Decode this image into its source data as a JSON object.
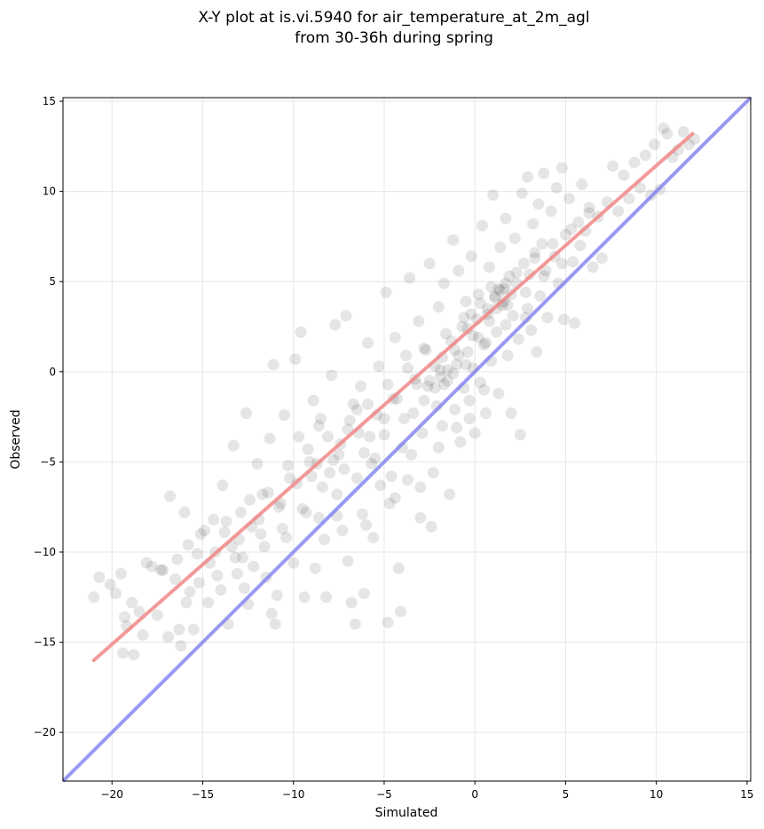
{
  "chart_data": {
    "type": "scatter",
    "title": "X-Y plot at is.vi.5940 for air_temperature_at_2m_agl",
    "subtitle": "from 30-36h during spring",
    "xlabel": "Simulated",
    "ylabel": "Observed",
    "xlim": [
      -22.7,
      15.2
    ],
    "ylim": [
      -22.7,
      15.2
    ],
    "xticks": [
      -20,
      -15,
      -10,
      -5,
      0,
      5,
      10,
      15
    ],
    "yticks": [
      -20,
      -15,
      -10,
      -5,
      0,
      5,
      10,
      15
    ],
    "xtick_labels": [
      "−20",
      "−15",
      "−10",
      "−5",
      "0",
      "5",
      "10",
      "15"
    ],
    "ytick_labels": [
      "−20",
      "−15",
      "−10",
      "−5",
      "0",
      "5",
      "10",
      "15"
    ],
    "grid": true,
    "colors": {
      "points": "#000000",
      "fit_line": "#f08080",
      "identity_line": "#8080f0",
      "grid": "#e6e6e6"
    },
    "identity_line": {
      "x": [
        -22.7,
        15.2
      ],
      "y": [
        -22.7,
        15.2
      ]
    },
    "fit_line": {
      "x": [
        -21,
        12
      ],
      "y": [
        -16.0,
        13.2
      ]
    },
    "points": [
      [
        -21.0,
        -12.5
      ],
      [
        -20.7,
        -11.4
      ],
      [
        -20.1,
        -11.8
      ],
      [
        -19.8,
        -12.3
      ],
      [
        -19.5,
        -11.2
      ],
      [
        -19.3,
        -13.6
      ],
      [
        -19.4,
        -15.6
      ],
      [
        -19.2,
        -14.1
      ],
      [
        -18.9,
        -12.8
      ],
      [
        -18.8,
        -15.7
      ],
      [
        -18.5,
        -13.3
      ],
      [
        -18.3,
        -14.6
      ],
      [
        -18.1,
        -10.6
      ],
      [
        -17.8,
        -10.8
      ],
      [
        -17.5,
        -13.5
      ],
      [
        -17.3,
        -11.0
      ],
      [
        -16.9,
        -14.7
      ],
      [
        -16.8,
        -6.9
      ],
      [
        -16.5,
        -11.5
      ],
      [
        -16.3,
        -14.3
      ],
      [
        -16.2,
        -15.2
      ],
      [
        -16.0,
        -7.8
      ],
      [
        -15.8,
        -9.6
      ],
      [
        -15.7,
        -12.2
      ],
      [
        -15.5,
        -14.3
      ],
      [
        -15.3,
        -10.1
      ],
      [
        -15.2,
        -11.7
      ],
      [
        -14.9,
        -8.8
      ],
      [
        -14.7,
        -12.8
      ],
      [
        -14.6,
        -10.6
      ],
      [
        -14.4,
        -8.2
      ],
      [
        -14.2,
        -11.3
      ],
      [
        -14.0,
        -12.1
      ],
      [
        -13.9,
        -6.3
      ],
      [
        -13.8,
        -8.9
      ],
      [
        -13.6,
        -14.0
      ],
      [
        -13.4,
        -9.7
      ],
      [
        -13.3,
        -4.1
      ],
      [
        -13.1,
        -11.2
      ],
      [
        -12.9,
        -7.8
      ],
      [
        -12.8,
        -10.3
      ],
      [
        -12.6,
        -2.3
      ],
      [
        -12.5,
        -12.9
      ],
      [
        -12.3,
        -8.6
      ],
      [
        -12.2,
        -10.8
      ],
      [
        -12.0,
        -5.1
      ],
      [
        -11.8,
        -9.0
      ],
      [
        -11.7,
        -6.8
      ],
      [
        -11.5,
        -11.4
      ],
      [
        -11.3,
        -3.7
      ],
      [
        -11.2,
        -13.4
      ],
      [
        -11.1,
        0.4
      ],
      [
        -11.0,
        -14.0
      ],
      [
        -10.9,
        -12.4
      ],
      [
        -10.7,
        -7.3
      ],
      [
        -10.5,
        -2.4
      ],
      [
        -10.4,
        -9.2
      ],
      [
        -10.2,
        -5.9
      ],
      [
        -10.0,
        -10.6
      ],
      [
        -9.9,
        0.7
      ],
      [
        -9.7,
        -3.6
      ],
      [
        -9.6,
        2.2
      ],
      [
        -9.4,
        -12.5
      ],
      [
        -9.3,
        -7.8
      ],
      [
        -9.1,
        -5.0
      ],
      [
        -8.9,
        -1.6
      ],
      [
        -8.8,
        -10.9
      ],
      [
        -8.6,
        -8.1
      ],
      [
        -8.5,
        -2.6
      ],
      [
        -8.3,
        -9.3
      ],
      [
        -8.2,
        -12.5
      ],
      [
        -8.0,
        -5.6
      ],
      [
        -7.9,
        -0.2
      ],
      [
        -7.7,
        2.6
      ],
      [
        -7.6,
        -6.8
      ],
      [
        -7.4,
        -4.0
      ],
      [
        -7.3,
        -8.8
      ],
      [
        -7.1,
        3.1
      ],
      [
        -7.0,
        -10.5
      ],
      [
        -6.8,
        -12.8
      ],
      [
        -6.7,
        -1.8
      ],
      [
        -6.6,
        -14.0
      ],
      [
        -6.5,
        -5.9
      ],
      [
        -6.3,
        -0.8
      ],
      [
        -6.2,
        -7.9
      ],
      [
        -6.1,
        -12.3
      ],
      [
        -5.9,
        1.6
      ],
      [
        -5.8,
        -3.6
      ],
      [
        -5.6,
        -9.2
      ],
      [
        -5.5,
        -4.8
      ],
      [
        -5.3,
        0.3
      ],
      [
        -5.2,
        -6.3
      ],
      [
        -5.0,
        -2.6
      ],
      [
        -4.9,
        4.4
      ],
      [
        -4.8,
        -13.9
      ],
      [
        -4.7,
        -7.3
      ],
      [
        -4.5,
        -1.5
      ],
      [
        -4.4,
        1.9
      ],
      [
        -4.2,
        -10.9
      ],
      [
        -4.1,
        -13.3
      ],
      [
        -4.0,
        -4.2
      ],
      [
        -3.8,
        0.9
      ],
      [
        -3.7,
        -6.0
      ],
      [
        -3.6,
        5.2
      ],
      [
        -3.4,
        -2.3
      ],
      [
        -3.3,
        -0.4
      ],
      [
        -3.1,
        2.8
      ],
      [
        -3.0,
        -8.1
      ],
      [
        -2.9,
        -3.4
      ],
      [
        -2.7,
        1.2
      ],
      [
        -2.6,
        -0.8
      ],
      [
        -2.5,
        6.0
      ],
      [
        -2.4,
        -8.6
      ],
      [
        -2.3,
        -5.6
      ],
      [
        -2.1,
        -1.9
      ],
      [
        -2.0,
        3.6
      ],
      [
        -1.9,
        0.1
      ],
      [
        -1.8,
        -3.0
      ],
      [
        -1.7,
        4.9
      ],
      [
        -1.5,
        -0.5
      ],
      [
        -1.4,
        -6.8
      ],
      [
        -1.3,
        1.7
      ],
      [
        -1.2,
        7.3
      ],
      [
        -1.1,
        -2.1
      ],
      [
        -1.0,
        0.4
      ],
      [
        -0.9,
        5.6
      ],
      [
        -0.8,
        -3.9
      ],
      [
        -0.7,
        2.5
      ],
      [
        -0.6,
        -0.9
      ],
      [
        -0.5,
        3.9
      ],
      [
        -0.4,
        1.1
      ],
      [
        -0.3,
        -1.6
      ],
      [
        -0.2,
        6.4
      ],
      [
        -0.1,
        0.2
      ],
      [
        0.0,
        -3.4
      ],
      [
        0.1,
        2.9
      ],
      [
        0.2,
        4.3
      ],
      [
        0.3,
        -0.6
      ],
      [
        0.4,
        8.1
      ],
      [
        0.5,
        1.5
      ],
      [
        0.6,
        -2.3
      ],
      [
        0.7,
        3.5
      ],
      [
        0.8,
        5.8
      ],
      [
        0.9,
        0.6
      ],
      [
        1.0,
        9.8
      ],
      [
        1.1,
        4.1
      ],
      [
        1.2,
        2.2
      ],
      [
        1.3,
        -1.2
      ],
      [
        1.4,
        6.9
      ],
      [
        1.5,
        3.7
      ],
      [
        1.6,
        4.6
      ],
      [
        1.7,
        8.5
      ],
      [
        1.8,
        0.9
      ],
      [
        1.9,
        5.3
      ],
      [
        2.0,
        -2.3
      ],
      [
        2.1,
        3.1
      ],
      [
        2.2,
        7.4
      ],
      [
        2.3,
        4.9
      ],
      [
        2.4,
        1.8
      ],
      [
        2.5,
        -3.5
      ],
      [
        2.6,
        9.9
      ],
      [
        2.7,
        6.0
      ],
      [
        2.8,
        3.0
      ],
      [
        2.9,
        10.8
      ],
      [
        3.0,
        5.4
      ],
      [
        3.1,
        2.3
      ],
      [
        3.2,
        8.2
      ],
      [
        3.3,
        6.6
      ],
      [
        3.4,
        1.1
      ],
      [
        3.5,
        9.3
      ],
      [
        3.6,
        4.2
      ],
      [
        3.7,
        7.1
      ],
      [
        3.8,
        11.0
      ],
      [
        3.9,
        5.6
      ],
      [
        4.0,
        3.0
      ],
      [
        4.2,
        8.9
      ],
      [
        4.4,
        6.4
      ],
      [
        4.5,
        10.2
      ],
      [
        4.6,
        4.9
      ],
      [
        4.8,
        11.3
      ],
      [
        4.9,
        2.9
      ],
      [
        5.0,
        7.6
      ],
      [
        5.2,
        9.6
      ],
      [
        5.4,
        6.1
      ],
      [
        5.5,
        2.7
      ],
      [
        5.7,
        8.3
      ],
      [
        5.9,
        10.4
      ],
      [
        6.1,
        7.8
      ],
      [
        6.3,
        9.1
      ],
      [
        6.5,
        5.8
      ],
      [
        6.8,
        8.6
      ],
      [
        7.0,
        6.3
      ],
      [
        7.3,
        9.4
      ],
      [
        7.6,
        11.4
      ],
      [
        7.9,
        8.9
      ],
      [
        8.2,
        10.9
      ],
      [
        8.5,
        9.6
      ],
      [
        8.8,
        11.6
      ],
      [
        9.1,
        10.2
      ],
      [
        9.4,
        12.0
      ],
      [
        9.7,
        9.8
      ],
      [
        9.9,
        12.6
      ],
      [
        10.2,
        10.1
      ],
      [
        10.4,
        13.5
      ],
      [
        10.6,
        13.2
      ],
      [
        10.9,
        11.9
      ],
      [
        11.2,
        12.3
      ],
      [
        11.5,
        13.3
      ],
      [
        11.8,
        12.6
      ],
      [
        12.1,
        12.9
      ],
      [
        -17.2,
        -11.0
      ],
      [
        -16.4,
        -10.4
      ],
      [
        -15.9,
        -12.8
      ],
      [
        -15.1,
        -9.0
      ],
      [
        -14.3,
        -10.0
      ],
      [
        -13.7,
        -8.3
      ],
      [
        -13.0,
        -9.3
      ],
      [
        -12.4,
        -7.1
      ],
      [
        -11.9,
        -8.2
      ],
      [
        -11.4,
        -6.7
      ],
      [
        -10.8,
        -7.5
      ],
      [
        -10.3,
        -5.2
      ],
      [
        -9.8,
        -6.2
      ],
      [
        -9.2,
        -4.3
      ],
      [
        -8.7,
        -5.1
      ],
      [
        -8.1,
        -3.6
      ],
      [
        -7.5,
        -4.6
      ],
      [
        -6.9,
        -2.7
      ],
      [
        -6.4,
        -3.4
      ],
      [
        -5.9,
        -1.8
      ],
      [
        -5.4,
        -2.4
      ],
      [
        -4.8,
        -0.7
      ],
      [
        -4.3,
        -1.5
      ],
      [
        -3.7,
        0.2
      ],
      [
        -3.2,
        -0.7
      ],
      [
        -2.8,
        1.3
      ],
      [
        -2.2,
        0.3
      ],
      [
        -1.6,
        2.1
      ],
      [
        -1.1,
        1.2
      ],
      [
        -0.6,
        3.0
      ],
      [
        -0.1,
        2.0
      ],
      [
        0.3,
        3.8
      ],
      [
        0.8,
        2.8
      ],
      [
        1.3,
        4.6
      ],
      [
        1.8,
        3.7
      ],
      [
        2.3,
        5.5
      ],
      [
        2.8,
        4.4
      ],
      [
        3.3,
        6.3
      ],
      [
        3.8,
        5.3
      ],
      [
        4.3,
        7.1
      ],
      [
        4.8,
        6.0
      ],
      [
        5.3,
        7.9
      ],
      [
        5.8,
        7.0
      ],
      [
        6.3,
        8.8
      ],
      [
        -13.2,
        -10.3
      ],
      [
        -12.7,
        -12.0
      ],
      [
        -11.6,
        -9.7
      ],
      [
        -10.6,
        -8.7
      ],
      [
        -9.5,
        -7.6
      ],
      [
        -8.4,
        -6.4
      ],
      [
        -7.2,
        -5.4
      ],
      [
        -6.1,
        -4.5
      ],
      [
        -5.0,
        -3.5
      ],
      [
        -3.9,
        -2.6
      ],
      [
        -2.8,
        -1.6
      ],
      [
        -1.7,
        -0.7
      ],
      [
        -0.5,
        0.4
      ],
      [
        0.6,
        1.6
      ],
      [
        1.7,
        2.6
      ],
      [
        2.9,
        3.5
      ],
      [
        -1.9,
        -0.3
      ],
      [
        -1.5,
        0.1
      ],
      [
        -2.2,
        -0.9
      ],
      [
        -1.2,
        -0.1
      ],
      [
        -1.8,
        0.8
      ],
      [
        -2.5,
        -0.5
      ],
      [
        -0.9,
        0.9
      ],
      [
        1.1,
        4.2
      ],
      [
        1.4,
        4.5
      ],
      [
        1.6,
        3.9
      ],
      [
        0.9,
        4.7
      ],
      [
        1.2,
        3.5
      ],
      [
        1.7,
        4.9
      ],
      [
        0.7,
        3.2
      ],
      [
        2.0,
        4.3
      ],
      [
        -0.4,
        2.4
      ],
      [
        0.2,
        1.9
      ],
      [
        -0.2,
        3.2
      ],
      [
        -7.0,
        -3.2
      ],
      [
        -6.5,
        -2.1
      ],
      [
        -7.8,
        -4.9
      ],
      [
        -8.6,
        -3.0
      ],
      [
        -9.0,
        -5.8
      ],
      [
        -5.7,
        -5.1
      ],
      [
        -4.6,
        -5.8
      ],
      [
        -3.5,
        -4.6
      ],
      [
        -2.0,
        -4.2
      ],
      [
        -1.0,
        -3.1
      ],
      [
        0.5,
        -1.0
      ],
      [
        -0.3,
        -2.6
      ],
      [
        -3.0,
        -6.4
      ],
      [
        -4.4,
        -7.0
      ],
      [
        -6.0,
        -8.5
      ],
      [
        -7.6,
        -8.0
      ]
    ]
  }
}
